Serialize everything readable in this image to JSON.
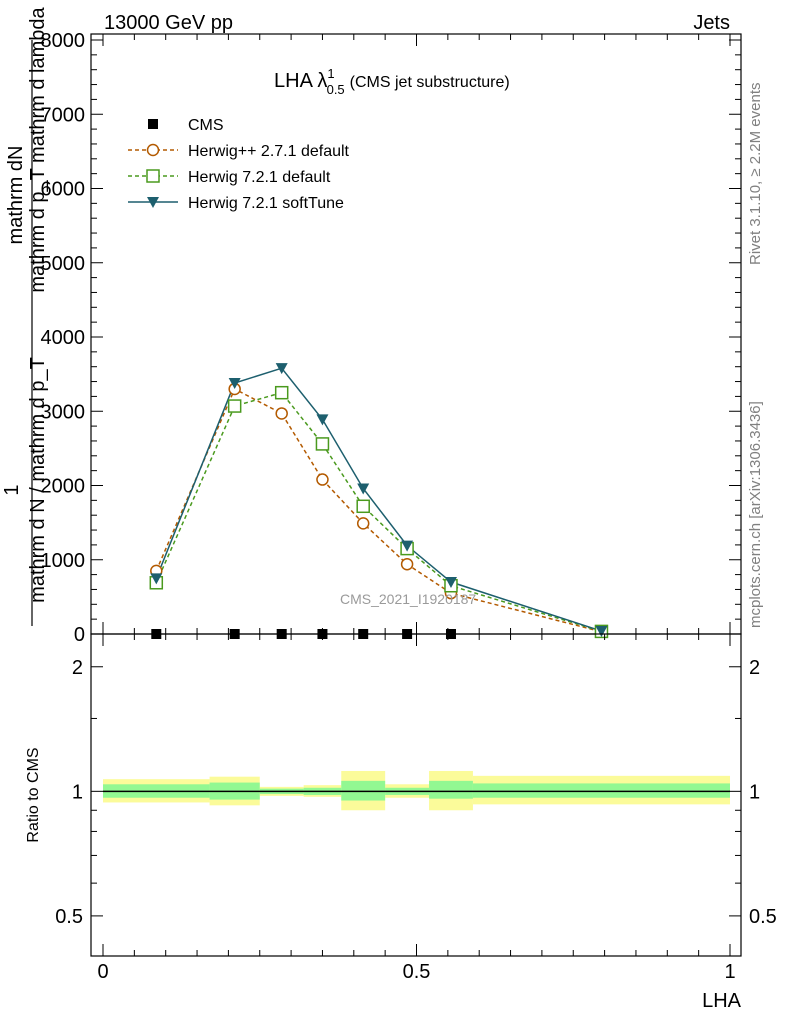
{
  "header": {
    "left": "13000 GeV pp",
    "right": "Jets"
  },
  "side_text": {
    "rivet": "Rivet 3.1.10, ≥ 2.2M events",
    "mcplots": "mcplots.cern.ch [arXiv:1306.3436]"
  },
  "watermark": "CMS_2021_I1920187",
  "colors": {
    "herwigpp": "#b35a00",
    "herwig721": "#4a9a1e",
    "softtune": "#1d5f6e",
    "band_inner": "#92f892",
    "band_outer": "#fbfb9a"
  },
  "chart_data": [
    {
      "type": "line",
      "title_main": "LHA λ",
      "title_sup": "1",
      "title_sub": "0.5",
      "title_suffix": "(CMS jet substructure)",
      "xlabel": "LHA",
      "ylabel_num": "mathrm dN",
      "ylabel_den": "mathrm d p_T mathrm d lambda",
      "ylabel_prefix_num": "1",
      "ylabel_prefix_den": "mathrm d N / mathrm d p_T",
      "xlim": [
        0,
        1
      ],
      "ylim": [
        0,
        8000
      ],
      "yticks": [
        0,
        1000,
        2000,
        3000,
        4000,
        5000,
        6000,
        7000,
        8000
      ],
      "ytick_labels": [
        "0",
        "1000",
        "2000",
        "3000",
        "4000",
        "5000",
        "6000",
        "7000",
        "8000"
      ],
      "legend_position": "top-left",
      "series": [
        {
          "name": "CMS",
          "marker": "square-filled",
          "x": [
            0.085,
            0.21,
            0.285,
            0.35,
            0.415,
            0.485,
            0.555
          ],
          "y": [
            0,
            0,
            0,
            0,
            0,
            0,
            0
          ]
        },
        {
          "name": "Herwig++ 2.7.1 default",
          "marker": "circle-open",
          "x": [
            0.085,
            0.21,
            0.285,
            0.35,
            0.415,
            0.485,
            0.555,
            0.795
          ],
          "y": [
            850,
            3300,
            2970,
            2080,
            1490,
            940,
            550,
            30
          ]
        },
        {
          "name": "Herwig 7.2.1 default",
          "marker": "square-open",
          "x": [
            0.085,
            0.21,
            0.285,
            0.35,
            0.415,
            0.485,
            0.555,
            0.795
          ],
          "y": [
            690,
            3070,
            3250,
            2560,
            1720,
            1150,
            650,
            35
          ]
        },
        {
          "name": "Herwig 7.2.1 softTune",
          "marker": "triangle-down-filled",
          "x": [
            0.085,
            0.21,
            0.285,
            0.35,
            0.415,
            0.485,
            0.555,
            0.795
          ],
          "y": [
            750,
            3380,
            3580,
            2890,
            1960,
            1190,
            700,
            40
          ]
        }
      ]
    },
    {
      "type": "area",
      "ylabel": "Ratio to CMS",
      "xlabel": "LHA",
      "xlim": [
        0,
        1
      ],
      "ylim": [
        0.4,
        2.4
      ],
      "log_scale_y": true,
      "yticks": [
        0.5,
        1,
        2
      ],
      "ytick_labels": [
        "0.5",
        "1",
        "2"
      ],
      "xticks": [
        0,
        0.5,
        1
      ],
      "xtick_labels": [
        "0",
        "0.5",
        "1"
      ],
      "bins": [
        {
          "x0": 0.0,
          "x1": 0.17,
          "inner": [
            0.965,
            1.04
          ],
          "outer": [
            0.94,
            1.07
          ]
        },
        {
          "x0": 0.17,
          "x1": 0.25,
          "inner": [
            0.955,
            1.05
          ],
          "outer": [
            0.925,
            1.085
          ]
        },
        {
          "x0": 0.25,
          "x1": 0.32,
          "inner": [
            0.985,
            1.015
          ],
          "outer": [
            0.975,
            1.025
          ]
        },
        {
          "x0": 0.32,
          "x1": 0.38,
          "inner": [
            0.98,
            1.02
          ],
          "outer": [
            0.97,
            1.035
          ]
        },
        {
          "x0": 0.38,
          "x1": 0.45,
          "inner": [
            0.95,
            1.06
          ],
          "outer": [
            0.9,
            1.12
          ]
        },
        {
          "x0": 0.45,
          "x1": 0.52,
          "inner": [
            0.98,
            1.02
          ],
          "outer": [
            0.965,
            1.04
          ]
        },
        {
          "x0": 0.52,
          "x1": 0.59,
          "inner": [
            0.96,
            1.06
          ],
          "outer": [
            0.9,
            1.12
          ]
        },
        {
          "x0": 0.59,
          "x1": 1.0,
          "inner": [
            0.965,
            1.045
          ],
          "outer": [
            0.93,
            1.09
          ]
        }
      ]
    }
  ]
}
